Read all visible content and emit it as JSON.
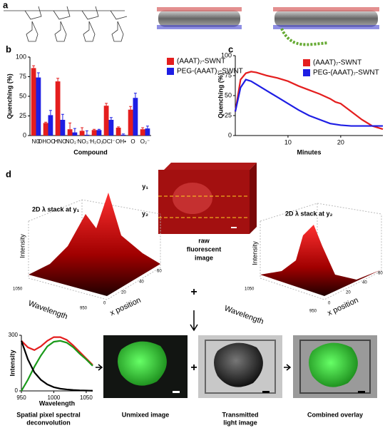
{
  "chart_data": [
    {
      "type": "bar",
      "y_label": "Quenching (%)",
      "x_label": "Compound",
      "categories": [
        "NO",
        "OHOO⁻",
        "HNO",
        "NO₂⁻",
        "NO₃⁻",
        "H₂O₂",
        "OCl⁻",
        "OH•",
        "O",
        "O₂⁻"
      ],
      "series": [
        {
          "name": "(AAAT)₇-SWNT",
          "color": "#e41e1e",
          "values": [
            86,
            16,
            69,
            8,
            6,
            7,
            38,
            10,
            33,
            8
          ],
          "errors": [
            3,
            1,
            4,
            8,
            4,
            1,
            3,
            1,
            4,
            2
          ]
        },
        {
          "name": "PEG-(AAAT)₇-SWNT",
          "color": "#1e1ee4",
          "values": [
            74,
            26,
            20,
            4,
            1,
            7,
            20,
            1,
            48,
            9
          ],
          "errors": [
            6,
            6,
            7,
            5,
            5,
            1,
            3,
            1,
            6,
            3
          ]
        }
      ],
      "ylim": [
        0,
        100
      ],
      "yticks": [
        0,
        25,
        50,
        75,
        100
      ],
      "legend": "outside-right"
    },
    {
      "type": "line",
      "y_label": "Quenching (%)",
      "x_label": "Minutes",
      "x": [
        0,
        1,
        2,
        3,
        4,
        5,
        6,
        8,
        10,
        12,
        14,
        16,
        18,
        19,
        20,
        22,
        24,
        26,
        28
      ],
      "series": [
        {
          "name": "(AAAT)₇-SWNT",
          "color": "#e41e1e",
          "values": [
            30,
            70,
            78,
            80,
            79,
            77,
            75,
            72,
            68,
            62,
            57,
            52,
            46,
            42,
            40,
            30,
            20,
            12,
            8
          ]
        },
        {
          "name": "PEG-(AAAT)₇-SWNT",
          "color": "#1e1ee4",
          "values": [
            30,
            60,
            70,
            68,
            64,
            60,
            56,
            48,
            40,
            32,
            25,
            20,
            15,
            14,
            13,
            12,
            12,
            12,
            12
          ]
        }
      ],
      "xlim": [
        0,
        28
      ],
      "xticks": [
        10,
        20
      ],
      "ylim": [
        0,
        100
      ],
      "yticks": [
        0,
        25,
        50,
        75,
        100
      ],
      "legend": "upper-right"
    },
    {
      "type": "line",
      "y_label": "Intensity",
      "x_label": "Wavelength",
      "x": [
        950,
        960,
        970,
        980,
        990,
        1000,
        1010,
        1020,
        1030,
        1040,
        1050,
        1060
      ],
      "series": [
        {
          "color": "#e41e1e",
          "values": [
            270,
            235,
            220,
            240,
            270,
            290,
            290,
            275,
            245,
            210,
            175,
            140
          ]
        },
        {
          "color": "#1a9a1a",
          "values": [
            0,
            60,
            130,
            190,
            240,
            265,
            270,
            260,
            235,
            200,
            170,
            135
          ]
        },
        {
          "color": "#000000",
          "values": [
            270,
            170,
            100,
            60,
            35,
            20,
            12,
            8,
            5,
            3,
            2,
            1
          ]
        }
      ],
      "xlim": [
        950,
        1060
      ],
      "xticks": [
        950,
        1000,
        1050
      ],
      "ylim": [
        0,
        300
      ],
      "yticks": [
        0,
        300
      ]
    }
  ],
  "figure": {
    "panel_labels": [
      "a",
      "b",
      "c",
      "d"
    ],
    "stack_y1": "2D λ stack at y₁",
    "stack_y2": "2D λ stack at y₂",
    "y1": "y₁",
    "y2": "y₂",
    "raw_image": [
      "raw",
      "fluorescent",
      "image"
    ],
    "surface_axes": {
      "intensity": "Intensity",
      "wavelength": "Wavelength",
      "x_position": "x position",
      "wavelength_ticks": [
        "1050",
        "950"
      ],
      "x_ticks": [
        "0",
        "20",
        "40",
        "60"
      ]
    },
    "plus": "+",
    "captions": {
      "deconvolution": [
        "Spatial pixel spectral",
        "deconvolution"
      ],
      "unmixed": "Unmixed image",
      "transmitted": [
        "Transmitted",
        "light image"
      ],
      "combined": "Combined overlay"
    }
  }
}
